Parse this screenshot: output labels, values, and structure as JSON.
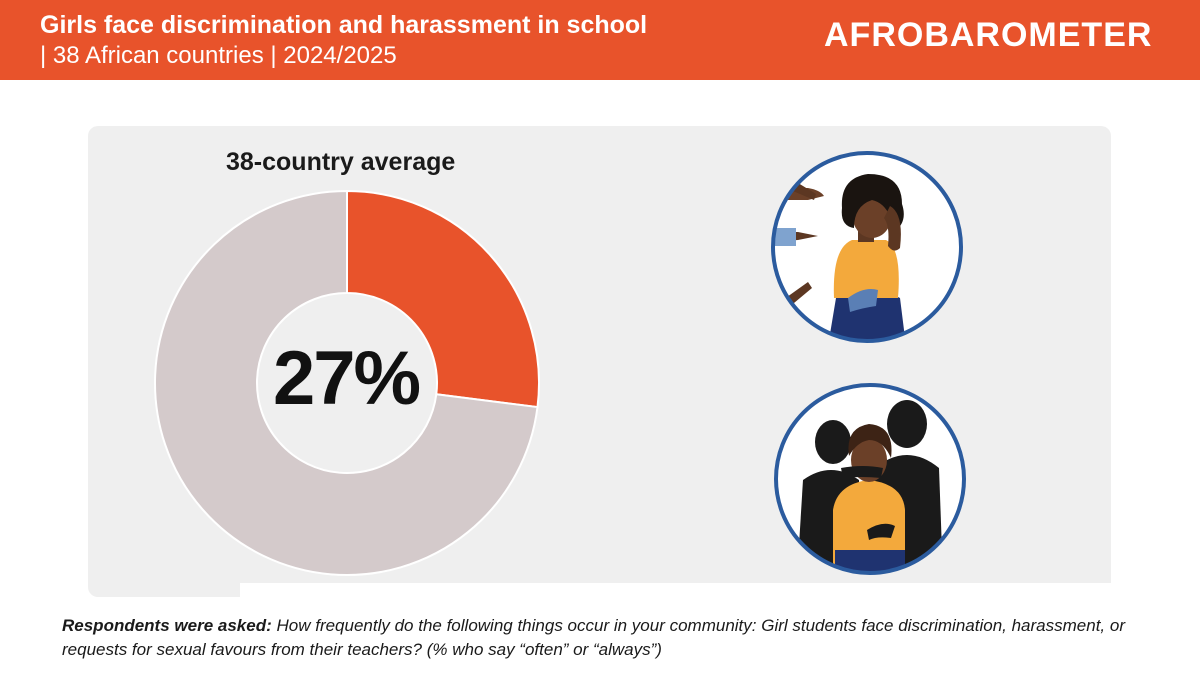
{
  "header": {
    "title": "Girls face discrimination and harassment in school",
    "subtitle": "| 38 African countries | 2024/2025",
    "logo_text": "AFROBAROMETER"
  },
  "chart_data": {
    "type": "pie",
    "title": "38-country average",
    "value_label": "27%",
    "values": [
      27,
      73
    ],
    "colors": [
      "#E8532B",
      "#D4CACB"
    ],
    "donut": true
  },
  "illustrations": {
    "top": "girl-pointed-at-icon",
    "bottom": "girl-silenced-by-shadows-icon"
  },
  "footer": {
    "lead": "Respondents were asked:",
    "question": "How frequently do the following things occur in your community: Girl students face discrimination, harassment, or requests for sexual favours from their teachers?  (% who say “often” or “always”)"
  }
}
